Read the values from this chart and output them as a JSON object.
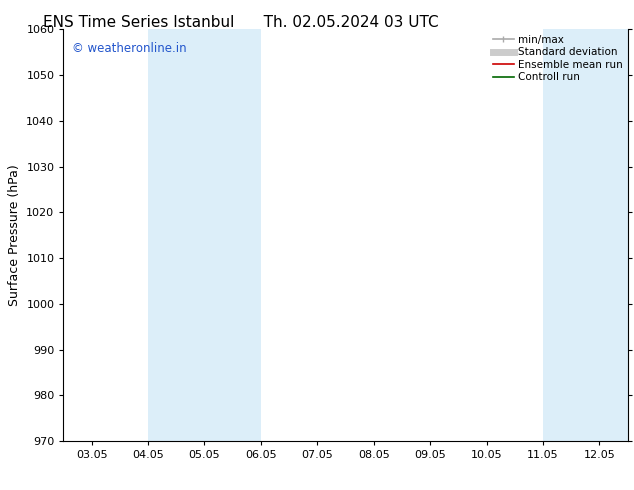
{
  "title_left": "ENS Time Series Istanbul",
  "title_right": "Th. 02.05.2024 03 UTC",
  "ylabel": "Surface Pressure (hPa)",
  "ylim": [
    970,
    1060
  ],
  "yticks": [
    970,
    980,
    990,
    1000,
    1010,
    1020,
    1030,
    1040,
    1050,
    1060
  ],
  "xtick_labels": [
    "03.05",
    "04.05",
    "05.05",
    "06.05",
    "07.05",
    "08.05",
    "09.05",
    "10.05",
    "11.05",
    "12.05"
  ],
  "xtick_positions": [
    0,
    1,
    2,
    3,
    4,
    5,
    6,
    7,
    8,
    9
  ],
  "xlim": [
    -0.5,
    9.5
  ],
  "shaded_regions": [
    {
      "xmin": 1.0,
      "xmax": 3.0,
      "color": "#dceef9"
    },
    {
      "xmin": 8.0,
      "xmax": 9.5,
      "color": "#dceef9"
    }
  ],
  "watermark": "© weatheronline.in",
  "watermark_color": "#2255cc",
  "background_color": "#ffffff",
  "legend_items": [
    {
      "label": "min/max",
      "color": "#aaaaaa",
      "lw": 1.2
    },
    {
      "label": "Standard deviation",
      "color": "#cccccc",
      "lw": 5
    },
    {
      "label": "Ensemble mean run",
      "color": "#cc0000",
      "lw": 1.2
    },
    {
      "label": "Controll run",
      "color": "#006600",
      "lw": 1.2
    }
  ],
  "title_fontsize": 11,
  "tick_fontsize": 8,
  "ylabel_fontsize": 9,
  "watermark_fontsize": 8.5,
  "legend_fontsize": 7.5
}
